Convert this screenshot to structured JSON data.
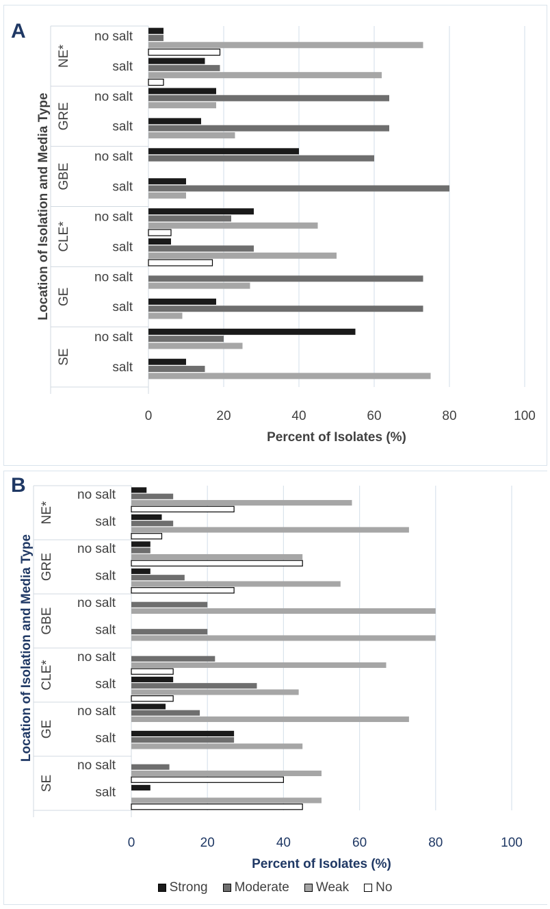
{
  "chart_data": [
    {
      "type": "bar",
      "orientation": "horizontal",
      "panel_label": "A",
      "title": "",
      "xlabel": "Percent of Isolates (%)",
      "ylabel": "Location of Isolation and Media Type",
      "xlim": [
        0,
        100
      ],
      "xticks": [
        "0",
        "20",
        "40",
        "60",
        "80",
        "100"
      ],
      "grid": true,
      "groups": [
        {
          "name": "NE*",
          "rows": [
            {
              "label": "no salt",
              "values": [
                4,
                4,
                73,
                19
              ]
            },
            {
              "label": "salt",
              "values": [
                15,
                19,
                62,
                4
              ]
            }
          ]
        },
        {
          "name": "GRE",
          "rows": [
            {
              "label": "no salt",
              "values": [
                18,
                64,
                18,
                0
              ]
            },
            {
              "label": "salt",
              "values": [
                14,
                64,
                23,
                0
              ]
            }
          ]
        },
        {
          "name": "GBE",
          "rows": [
            {
              "label": "no salt",
              "values": [
                40,
                60,
                0,
                0
              ]
            },
            {
              "label": "salt",
              "values": [
                10,
                80,
                10,
                0
              ]
            }
          ]
        },
        {
          "name": "CLE*",
          "rows": [
            {
              "label": "no salt",
              "values": [
                28,
                22,
                45,
                6
              ]
            },
            {
              "label": "salt",
              "values": [
                6,
                28,
                50,
                17
              ]
            }
          ]
        },
        {
          "name": "GE",
          "rows": [
            {
              "label": "no salt",
              "values": [
                0,
                73,
                27,
                0
              ]
            },
            {
              "label": "salt",
              "values": [
                18,
                73,
                9,
                0
              ]
            }
          ]
        },
        {
          "name": "SE",
          "rows": [
            {
              "label": "no salt",
              "values": [
                55,
                20,
                25,
                0
              ]
            },
            {
              "label": "salt",
              "values": [
                10,
                15,
                75,
                0
              ]
            }
          ]
        }
      ]
    },
    {
      "type": "bar",
      "orientation": "horizontal",
      "panel_label": "B",
      "title": "",
      "xlabel": "Percent of Isolates (%)",
      "ylabel": "Location of Isolation and Media Type",
      "xlim": [
        0,
        100
      ],
      "xticks": [
        "0",
        "20",
        "40",
        "60",
        "80",
        "100"
      ],
      "grid": true,
      "groups": [
        {
          "name": "NE*",
          "rows": [
            {
              "label": "no salt",
              "values": [
                4,
                11,
                58,
                27
              ]
            },
            {
              "label": "salt",
              "values": [
                8,
                11,
                73,
                8
              ]
            }
          ]
        },
        {
          "name": "GRE",
          "rows": [
            {
              "label": "no salt",
              "values": [
                5,
                5,
                45,
                45
              ]
            },
            {
              "label": "salt",
              "values": [
                5,
                14,
                55,
                27
              ]
            }
          ]
        },
        {
          "name": "GBE",
          "rows": [
            {
              "label": "no salt",
              "values": [
                0,
                20,
                80,
                0
              ]
            },
            {
              "label": "salt",
              "values": [
                0,
                20,
                80,
                0
              ]
            }
          ]
        },
        {
          "name": "CLE*",
          "rows": [
            {
              "label": "no salt",
              "values": [
                0,
                22,
                67,
                11
              ]
            },
            {
              "label": "salt",
              "values": [
                11,
                33,
                44,
                11
              ]
            }
          ]
        },
        {
          "name": "GE",
          "rows": [
            {
              "label": "no salt",
              "values": [
                9,
                18,
                73,
                0
              ]
            },
            {
              "label": "salt",
              "values": [
                27,
                27,
                45,
                0
              ]
            }
          ]
        },
        {
          "name": "SE",
          "rows": [
            {
              "label": "no salt",
              "values": [
                0,
                10,
                50,
                40
              ]
            },
            {
              "label": "salt",
              "values": [
                5,
                0,
                50,
                45
              ]
            }
          ]
        }
      ]
    }
  ],
  "legend": {
    "placement": "bottom",
    "items": [
      {
        "label": "Strong",
        "color": "#1a1a1a"
      },
      {
        "label": "Moderate",
        "color": "#6e6e6e"
      },
      {
        "label": "Weak",
        "color": "#a6a6a6"
      },
      {
        "label": "No",
        "color": "#ffffff"
      }
    ]
  }
}
